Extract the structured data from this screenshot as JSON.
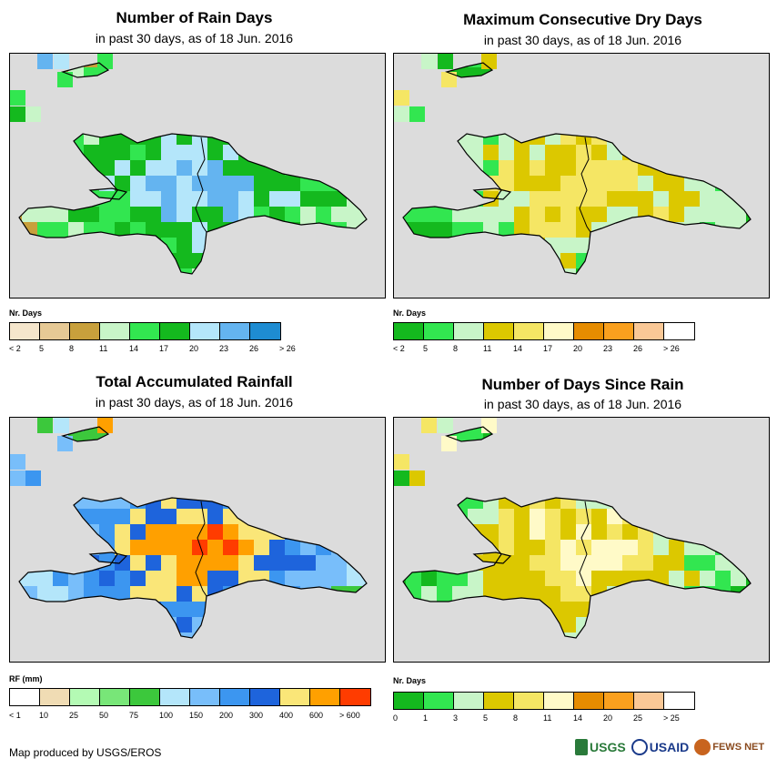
{
  "panels": [
    {
      "title": "Number of Rain Days",
      "subtitle": "in past 30 days, as of 18 Jun. 2016",
      "legend_title": "Nr. Days",
      "legend_colors": [
        "#f5e6cc",
        "#e6c995",
        "#c8a03c",
        "#c8f5c8",
        "#32e650",
        "#14b91e",
        "#b4e6fa",
        "#64b4f0",
        "#1e8cd2"
      ],
      "legend_ticks": [
        "< 2",
        "5",
        "8",
        "11",
        "14",
        "17",
        "20",
        "23",
        "26",
        "> 26"
      ]
    },
    {
      "title": "Maximum Consecutive Dry Days",
      "subtitle": "in past 30 days, as of 18 Jun. 2016",
      "legend_title": "Nr. Days",
      "legend_colors": [
        "#14b91e",
        "#32e650",
        "#c8f5c8",
        "#dcc800",
        "#f5e664",
        "#fffac8",
        "#e68c00",
        "#faa01e",
        "#fac896",
        "#ffffff"
      ],
      "legend_ticks": [
        "< 2",
        "5",
        "8",
        "11",
        "14",
        "17",
        "20",
        "23",
        "26",
        "> 26"
      ]
    },
    {
      "title": "Total Accumulated Rainfall",
      "subtitle": "in past 30 days, as of 18 Jun. 2016",
      "legend_title": "RF (mm)",
      "legend_colors": [
        "#ffffff",
        "#f0dcb4",
        "#b4fab4",
        "#78e678",
        "#3cc83c",
        "#b4e6fa",
        "#78befa",
        "#3c96f0",
        "#1e64dc",
        "#fae678",
        "#ffa000",
        "#ff3c00"
      ],
      "legend_ticks": [
        "< 1",
        "10",
        "25",
        "50",
        "75",
        "100",
        "150",
        "200",
        "300",
        "400",
        "600",
        "> 600"
      ]
    },
    {
      "title": "Number of Days Since Rain",
      "subtitle": "in past 30 days, as of 18 Jun. 2016",
      "legend_title": "Nr. Days",
      "legend_colors": [
        "#14b91e",
        "#32e650",
        "#c8f5c8",
        "#dcc800",
        "#f5e664",
        "#fffac8",
        "#e68c00",
        "#faa01e",
        "#fac896",
        "#ffffff"
      ],
      "legend_ticks": [
        "0",
        "1",
        "3",
        "5",
        "8",
        "11",
        "14",
        "20",
        "25",
        "> 25"
      ]
    }
  ],
  "footer": "Map produced by USGS/EROS",
  "logos": [
    "USGS",
    "USAID",
    "FEWS NET"
  ]
}
